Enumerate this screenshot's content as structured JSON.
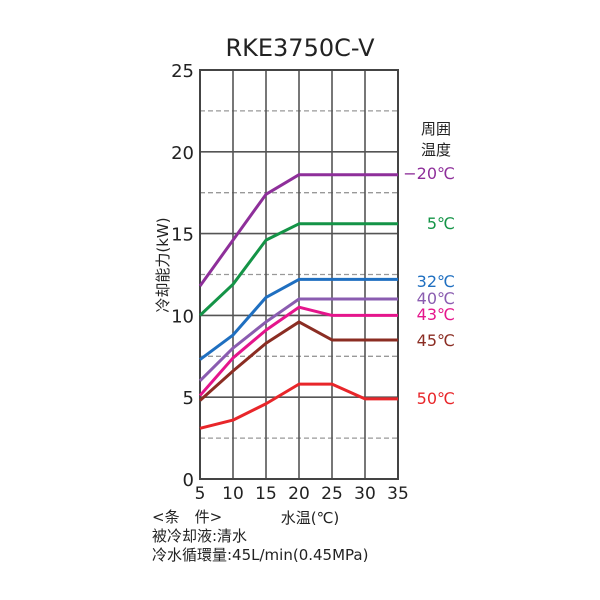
{
  "chart_data": {
    "type": "line",
    "title": "RKE3750C-V",
    "xlabel": "水温(℃)",
    "ylabel": "冷却能力(kW)",
    "x": [
      5,
      10,
      15,
      20,
      25,
      30,
      35
    ],
    "xlim": [
      5,
      35
    ],
    "ylim": [
      0,
      25
    ],
    "xticks": [
      "5",
      "10",
      "15",
      "20",
      "25",
      "30",
      "35"
    ],
    "yticks": [
      "0",
      "5",
      "10",
      "15",
      "20",
      "25"
    ],
    "grid": true,
    "legend_title": [
      "周囲",
      "温度"
    ],
    "legend_placement": "right",
    "series": [
      {
        "name": "−20℃",
        "color": "#8e2f9a",
        "values": [
          11.8,
          14.6,
          17.4,
          18.6,
          18.6,
          18.6,
          18.6
        ]
      },
      {
        "name": "5℃",
        "color": "#149447",
        "values": [
          10.0,
          11.9,
          14.6,
          15.6,
          15.6,
          15.6,
          15.6
        ]
      },
      {
        "name": "32℃",
        "color": "#1f6fc0",
        "values": [
          7.3,
          8.8,
          11.1,
          12.2,
          12.2,
          12.2,
          12.2
        ]
      },
      {
        "name": "40℃",
        "color": "#8a5cb0",
        "values": [
          6.0,
          8.0,
          9.6,
          11.0,
          11.0,
          11.0,
          11.0
        ]
      },
      {
        "name": "43℃",
        "color": "#e5158c",
        "values": [
          5.1,
          7.4,
          9.1,
          10.5,
          10.0,
          10.0,
          10.0
        ]
      },
      {
        "name": "45℃",
        "color": "#8b2d23",
        "values": [
          4.8,
          6.6,
          8.3,
          9.6,
          8.5,
          8.5,
          8.5
        ]
      },
      {
        "name": "50℃",
        "color": "#e8262a",
        "values": [
          3.1,
          3.6,
          4.6,
          5.8,
          5.8,
          4.9,
          4.9
        ]
      }
    ],
    "notes": [
      "<条　件>",
      "被冷却液:清水",
      "冷水循環量:45L/min(0.45MPa)"
    ]
  }
}
